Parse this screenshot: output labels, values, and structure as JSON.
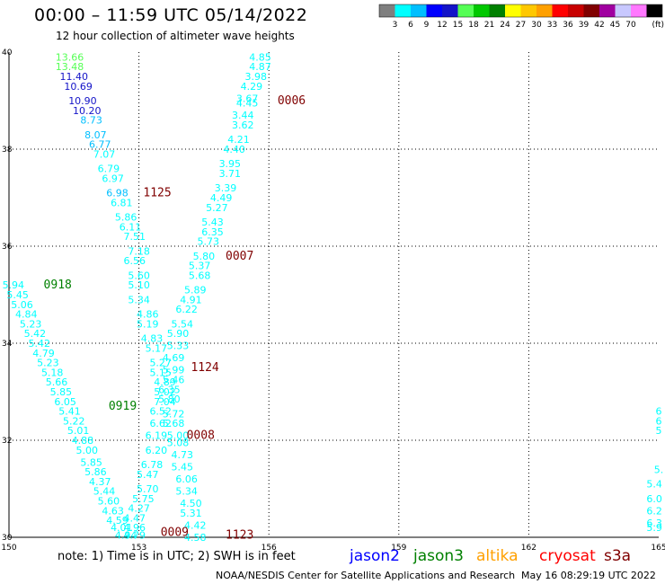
{
  "header": {
    "title": "00:00 – 11:59 UTC 05/14/2022",
    "subtitle": "12 hour collection of altimeter wave heights"
  },
  "colorbar": {
    "colors": [
      "#7f7f7f",
      "#00ffff",
      "#00bfff",
      "#0000ff",
      "#1414c8",
      "#55ff55",
      "#00c800",
      "#008000",
      "#ffff00",
      "#ffc800",
      "#ffa000",
      "#ff0000",
      "#c80000",
      "#800000",
      "#a000a0",
      "#c8c8ff",
      "#ff78ff",
      "#000000"
    ],
    "labels": [
      "3",
      "6",
      "9",
      "12",
      "15",
      "18",
      "21",
      "24",
      "27",
      "30",
      "33",
      "36",
      "39",
      "42",
      "45",
      "70"
    ],
    "unit": "(ft)"
  },
  "footer": {
    "note": "note: 1) Time is in UTC; 2) SWH is in feet",
    "satellites": [
      {
        "name": "jason2",
        "color": "#0000ff"
      },
      {
        "name": "jason3",
        "color": "#008000"
      },
      {
        "name": "altika",
        "color": "#ffa000"
      },
      {
        "name": "cryosat",
        "color": "#ff0000"
      },
      {
        "name": "s3a",
        "color": "#800000"
      }
    ],
    "credit": "NOAA/NESDIS Center for Satellite Applications and Research",
    "timestamp": "May 16 08:29:19 UTC 2022"
  },
  "chart_data": {
    "type": "scatter",
    "xlim": [
      150,
      165
    ],
    "ylim": [
      30,
      40
    ],
    "xticks": [
      "150",
      "153",
      "156",
      "159",
      "162",
      "165"
    ],
    "yticks": [
      "30",
      "32",
      "34",
      "36",
      "38",
      "40"
    ],
    "grid": true,
    "pass_labels": [
      {
        "text": "0006",
        "x": 156.2,
        "y": 39.0,
        "color": "#800000"
      },
      {
        "text": "1125",
        "x": 153.1,
        "y": 37.1,
        "color": "#800000"
      },
      {
        "text": "0007",
        "x": 155.0,
        "y": 35.8,
        "color": "#800000"
      },
      {
        "text": "0918",
        "x": 150.8,
        "y": 35.2,
        "color": "#008000"
      },
      {
        "text": "1124",
        "x": 154.2,
        "y": 33.5,
        "color": "#800000"
      },
      {
        "text": "0919",
        "x": 152.3,
        "y": 32.7,
        "color": "#008000"
      },
      {
        "text": "0008",
        "x": 154.1,
        "y": 32.1,
        "color": "#800000"
      },
      {
        "text": "0009",
        "x": 153.5,
        "y": 30.1,
        "color": "#800000"
      },
      {
        "text": "1123",
        "x": 155.0,
        "y": 30.05,
        "color": "#800000"
      }
    ],
    "points": [
      {
        "x": 151.4,
        "y": 39.9,
        "v": "13.66",
        "color": "#55ff55"
      },
      {
        "x": 151.4,
        "y": 39.7,
        "v": "13.48",
        "color": "#55ff55"
      },
      {
        "x": 151.5,
        "y": 39.5,
        "v": "11.40",
        "color": "#1414c8"
      },
      {
        "x": 151.6,
        "y": 39.3,
        "v": "10.69",
        "color": "#1414c8"
      },
      {
        "x": 151.7,
        "y": 39.0,
        "v": "10.90",
        "color": "#1414c8"
      },
      {
        "x": 151.8,
        "y": 38.8,
        "v": "10.20",
        "color": "#1414c8"
      },
      {
        "x": 151.9,
        "y": 38.6,
        "v": "8.73",
        "color": "#00bfff"
      },
      {
        "x": 152.0,
        "y": 38.3,
        "v": "8.07",
        "color": "#00bfff"
      },
      {
        "x": 152.1,
        "y": 38.1,
        "v": "6.77",
        "color": "#00bfff"
      },
      {
        "x": 152.2,
        "y": 37.9,
        "v": "7.07",
        "color": "#00ffff"
      },
      {
        "x": 152.3,
        "y": 37.6,
        "v": "6.79",
        "color": "#00ffff"
      },
      {
        "x": 152.4,
        "y": 37.4,
        "v": "6.97",
        "color": "#00ffff"
      },
      {
        "x": 152.5,
        "y": 37.1,
        "v": "6.98",
        "color": "#00bfff"
      },
      {
        "x": 152.6,
        "y": 36.9,
        "v": "6.81",
        "color": "#00ffff"
      },
      {
        "x": 152.7,
        "y": 36.6,
        "v": "5.86",
        "color": "#00ffff"
      },
      {
        "x": 152.8,
        "y": 36.4,
        "v": "6.11",
        "color": "#00ffff"
      },
      {
        "x": 152.9,
        "y": 36.2,
        "v": "7.51",
        "color": "#00ffff"
      },
      {
        "x": 153.0,
        "y": 35.9,
        "v": "7.18",
        "color": "#00ffff"
      },
      {
        "x": 152.9,
        "y": 35.7,
        "v": "6.56",
        "color": "#00ffff"
      },
      {
        "x": 153.0,
        "y": 35.4,
        "v": "5.60",
        "color": "#00ffff"
      },
      {
        "x": 153.0,
        "y": 35.2,
        "v": "5.10",
        "color": "#00ffff"
      },
      {
        "x": 153.0,
        "y": 34.9,
        "v": "5.34",
        "color": "#00ffff"
      },
      {
        "x": 153.2,
        "y": 34.6,
        "v": "4.86",
        "color": "#00ffff"
      },
      {
        "x": 153.2,
        "y": 34.4,
        "v": "5.19",
        "color": "#00ffff"
      },
      {
        "x": 153.3,
        "y": 34.1,
        "v": "4.83",
        "color": "#00ffff"
      },
      {
        "x": 153.4,
        "y": 33.9,
        "v": "5.17",
        "color": "#00ffff"
      },
      {
        "x": 153.5,
        "y": 33.6,
        "v": "5.27",
        "color": "#00ffff"
      },
      {
        "x": 153.5,
        "y": 33.4,
        "v": "5.15",
        "color": "#00ffff"
      },
      {
        "x": 153.6,
        "y": 33.2,
        "v": "4.89",
        "color": "#00ffff"
      },
      {
        "x": 153.6,
        "y": 33.0,
        "v": "5.02",
        "color": "#00ffff"
      },
      {
        "x": 153.6,
        "y": 32.8,
        "v": "7.04",
        "color": "#00ffff"
      },
      {
        "x": 153.5,
        "y": 32.6,
        "v": "6.52",
        "color": "#00ffff"
      },
      {
        "x": 153.5,
        "y": 32.35,
        "v": "6.62",
        "color": "#00ffff"
      },
      {
        "x": 153.4,
        "y": 32.1,
        "v": "6.19",
        "color": "#00ffff"
      },
      {
        "x": 153.4,
        "y": 31.8,
        "v": "6.20",
        "color": "#00ffff"
      },
      {
        "x": 153.3,
        "y": 31.5,
        "v": "6.78",
        "color": "#00ffff"
      },
      {
        "x": 153.2,
        "y": 31.3,
        "v": "5.47",
        "color": "#00ffff"
      },
      {
        "x": 153.2,
        "y": 31.0,
        "v": "5.70",
        "color": "#00ffff"
      },
      {
        "x": 153.1,
        "y": 30.8,
        "v": "5.75",
        "color": "#00ffff"
      },
      {
        "x": 153.0,
        "y": 30.6,
        "v": "4.27",
        "color": "#00ffff"
      },
      {
        "x": 152.9,
        "y": 30.4,
        "v": "4.47",
        "color": "#00ffff"
      },
      {
        "x": 152.9,
        "y": 30.2,
        "v": "4.96",
        "color": "#00ffff"
      },
      {
        "x": 152.9,
        "y": 30.05,
        "v": "4.79",
        "color": "#00ffff"
      },
      {
        "x": 155.8,
        "y": 39.9,
        "v": "4.85",
        "color": "#00ffff"
      },
      {
        "x": 155.8,
        "y": 39.7,
        "v": "4.87",
        "color": "#00ffff"
      },
      {
        "x": 155.7,
        "y": 39.5,
        "v": "3.98",
        "color": "#00ffff"
      },
      {
        "x": 155.6,
        "y": 39.3,
        "v": "4.29",
        "color": "#00ffff"
      },
      {
        "x": 155.5,
        "y": 39.05,
        "v": "3.67",
        "color": "#00ffff"
      },
      {
        "x": 155.5,
        "y": 38.95,
        "v": "4.45",
        "color": "#00ffff"
      },
      {
        "x": 155.4,
        "y": 38.7,
        "v": "3.44",
        "color": "#00ffff"
      },
      {
        "x": 155.4,
        "y": 38.5,
        "v": "3.62",
        "color": "#00ffff"
      },
      {
        "x": 155.3,
        "y": 38.2,
        "v": "4.21",
        "color": "#00ffff"
      },
      {
        "x": 155.2,
        "y": 38.0,
        "v": "4.40",
        "color": "#00ffff"
      },
      {
        "x": 155.1,
        "y": 37.7,
        "v": "3.95",
        "color": "#00ffff"
      },
      {
        "x": 155.1,
        "y": 37.5,
        "v": "3.71",
        "color": "#00ffff"
      },
      {
        "x": 155.0,
        "y": 37.2,
        "v": "3.39",
        "color": "#00ffff"
      },
      {
        "x": 154.9,
        "y": 37.0,
        "v": "4.49",
        "color": "#00ffff"
      },
      {
        "x": 154.8,
        "y": 36.8,
        "v": "5.27",
        "color": "#00ffff"
      },
      {
        "x": 154.7,
        "y": 36.5,
        "v": "5.43",
        "color": "#00ffff"
      },
      {
        "x": 154.7,
        "y": 36.3,
        "v": "6.35",
        "color": "#00ffff"
      },
      {
        "x": 154.6,
        "y": 36.1,
        "v": "5.73",
        "color": "#00ffff"
      },
      {
        "x": 154.5,
        "y": 35.8,
        "v": "5.80",
        "color": "#00ffff"
      },
      {
        "x": 154.4,
        "y": 35.6,
        "v": "5.37",
        "color": "#00ffff"
      },
      {
        "x": 154.4,
        "y": 35.4,
        "v": "5.68",
        "color": "#00ffff"
      },
      {
        "x": 154.3,
        "y": 35.1,
        "v": "5.89",
        "color": "#00ffff"
      },
      {
        "x": 154.2,
        "y": 34.9,
        "v": "4.91",
        "color": "#00ffff"
      },
      {
        "x": 154.1,
        "y": 34.7,
        "v": "6.22",
        "color": "#00ffff"
      },
      {
        "x": 154.0,
        "y": 34.4,
        "v": "5.54",
        "color": "#00ffff"
      },
      {
        "x": 153.9,
        "y": 34.2,
        "v": "5.90",
        "color": "#00ffff"
      },
      {
        "x": 153.9,
        "y": 33.95,
        "v": "5.33",
        "color": "#00ffff"
      },
      {
        "x": 153.8,
        "y": 33.7,
        "v": "4.69",
        "color": "#00ffff"
      },
      {
        "x": 153.8,
        "y": 33.45,
        "v": "5.99",
        "color": "#00ffff"
      },
      {
        "x": 153.8,
        "y": 33.25,
        "v": "5.46",
        "color": "#00ffff"
      },
      {
        "x": 153.7,
        "y": 33.05,
        "v": "6.35",
        "color": "#00ffff"
      },
      {
        "x": 153.7,
        "y": 32.85,
        "v": "5.80",
        "color": "#00ffff"
      },
      {
        "x": 153.8,
        "y": 32.55,
        "v": "5.72",
        "color": "#00ffff"
      },
      {
        "x": 153.8,
        "y": 32.35,
        "v": "5.68",
        "color": "#00ffff"
      },
      {
        "x": 153.9,
        "y": 32.1,
        "v": "5.00",
        "color": "#00ffff"
      },
      {
        "x": 153.9,
        "y": 31.95,
        "v": "5.08",
        "color": "#00ffff"
      },
      {
        "x": 154.0,
        "y": 31.7,
        "v": "4.73",
        "color": "#00ffff"
      },
      {
        "x": 154.0,
        "y": 31.45,
        "v": "5.45",
        "color": "#00ffff"
      },
      {
        "x": 154.1,
        "y": 31.2,
        "v": "6.06",
        "color": "#00ffff"
      },
      {
        "x": 154.1,
        "y": 30.95,
        "v": "5.34",
        "color": "#00ffff"
      },
      {
        "x": 154.2,
        "y": 30.7,
        "v": "4.50",
        "color": "#00ffff"
      },
      {
        "x": 154.2,
        "y": 30.5,
        "v": "5.31",
        "color": "#00ffff"
      },
      {
        "x": 154.3,
        "y": 30.25,
        "v": "4.42",
        "color": "#00ffff"
      },
      {
        "x": 154.3,
        "y": 30.0,
        "v": "4.58",
        "color": "#00ffff"
      },
      {
        "x": 150.1,
        "y": 35.2,
        "v": "5.94",
        "color": "#00ffff"
      },
      {
        "x": 150.2,
        "y": 35.0,
        "v": "5.45",
        "color": "#00ffff"
      },
      {
        "x": 150.3,
        "y": 34.8,
        "v": "5.06",
        "color": "#00ffff"
      },
      {
        "x": 150.4,
        "y": 34.6,
        "v": "4.84",
        "color": "#00ffff"
      },
      {
        "x": 150.5,
        "y": 34.4,
        "v": "5.23",
        "color": "#00ffff"
      },
      {
        "x": 150.6,
        "y": 34.2,
        "v": "5.42",
        "color": "#00ffff"
      },
      {
        "x": 150.7,
        "y": 34.0,
        "v": "5.42",
        "color": "#00ffff"
      },
      {
        "x": 150.8,
        "y": 33.8,
        "v": "4.79",
        "color": "#00ffff"
      },
      {
        "x": 150.9,
        "y": 33.6,
        "v": "5.23",
        "color": "#00ffff"
      },
      {
        "x": 151.0,
        "y": 33.4,
        "v": "5.18",
        "color": "#00ffff"
      },
      {
        "x": 151.1,
        "y": 33.2,
        "v": "5.66",
        "color": "#00ffff"
      },
      {
        "x": 151.2,
        "y": 33.0,
        "v": "5.85",
        "color": "#00ffff"
      },
      {
        "x": 151.3,
        "y": 32.8,
        "v": "6.05",
        "color": "#00ffff"
      },
      {
        "x": 151.4,
        "y": 32.6,
        "v": "5.41",
        "color": "#00ffff"
      },
      {
        "x": 151.5,
        "y": 32.4,
        "v": "5.22",
        "color": "#00ffff"
      },
      {
        "x": 151.6,
        "y": 32.2,
        "v": "5.01",
        "color": "#00ffff"
      },
      {
        "x": 151.7,
        "y": 32.0,
        "v": "4.88",
        "color": "#00ffff"
      },
      {
        "x": 151.8,
        "y": 31.8,
        "v": "5.00",
        "color": "#00ffff"
      },
      {
        "x": 151.9,
        "y": 31.55,
        "v": "5.85",
        "color": "#00ffff"
      },
      {
        "x": 152.0,
        "y": 31.35,
        "v": "5.86",
        "color": "#00ffff"
      },
      {
        "x": 152.1,
        "y": 31.15,
        "v": "4.37",
        "color": "#00ffff"
      },
      {
        "x": 152.2,
        "y": 30.95,
        "v": "5.44",
        "color": "#00ffff"
      },
      {
        "x": 152.3,
        "y": 30.75,
        "v": "5.60",
        "color": "#00ffff"
      },
      {
        "x": 152.4,
        "y": 30.55,
        "v": "4.63",
        "color": "#00ffff"
      },
      {
        "x": 152.5,
        "y": 30.35,
        "v": "4.59",
        "color": "#00ffff"
      },
      {
        "x": 152.6,
        "y": 30.2,
        "v": "4.01",
        "color": "#00ffff"
      },
      {
        "x": 152.7,
        "y": 30.05,
        "v": "4.94",
        "color": "#00ffff"
      },
      {
        "x": 165.0,
        "y": 32.6,
        "v": "6",
        "color": "#00ffff"
      },
      {
        "x": 165.0,
        "y": 32.4,
        "v": "6",
        "color": "#00ffff"
      },
      {
        "x": 165.0,
        "y": 32.2,
        "v": "5",
        "color": "#00ffff"
      },
      {
        "x": 165.0,
        "y": 31.4,
        "v": "5.",
        "color": "#00ffff"
      },
      {
        "x": 164.9,
        "y": 31.1,
        "v": "5.4",
        "color": "#00ffff"
      },
      {
        "x": 164.9,
        "y": 30.8,
        "v": "6.0",
        "color": "#00ffff"
      },
      {
        "x": 164.9,
        "y": 30.55,
        "v": "6.2",
        "color": "#00ffff"
      },
      {
        "x": 164.9,
        "y": 30.3,
        "v": "6.3",
        "color": "#00ffff"
      },
      {
        "x": 164.9,
        "y": 30.2,
        "v": "5.9",
        "color": "#00ffff"
      }
    ]
  }
}
